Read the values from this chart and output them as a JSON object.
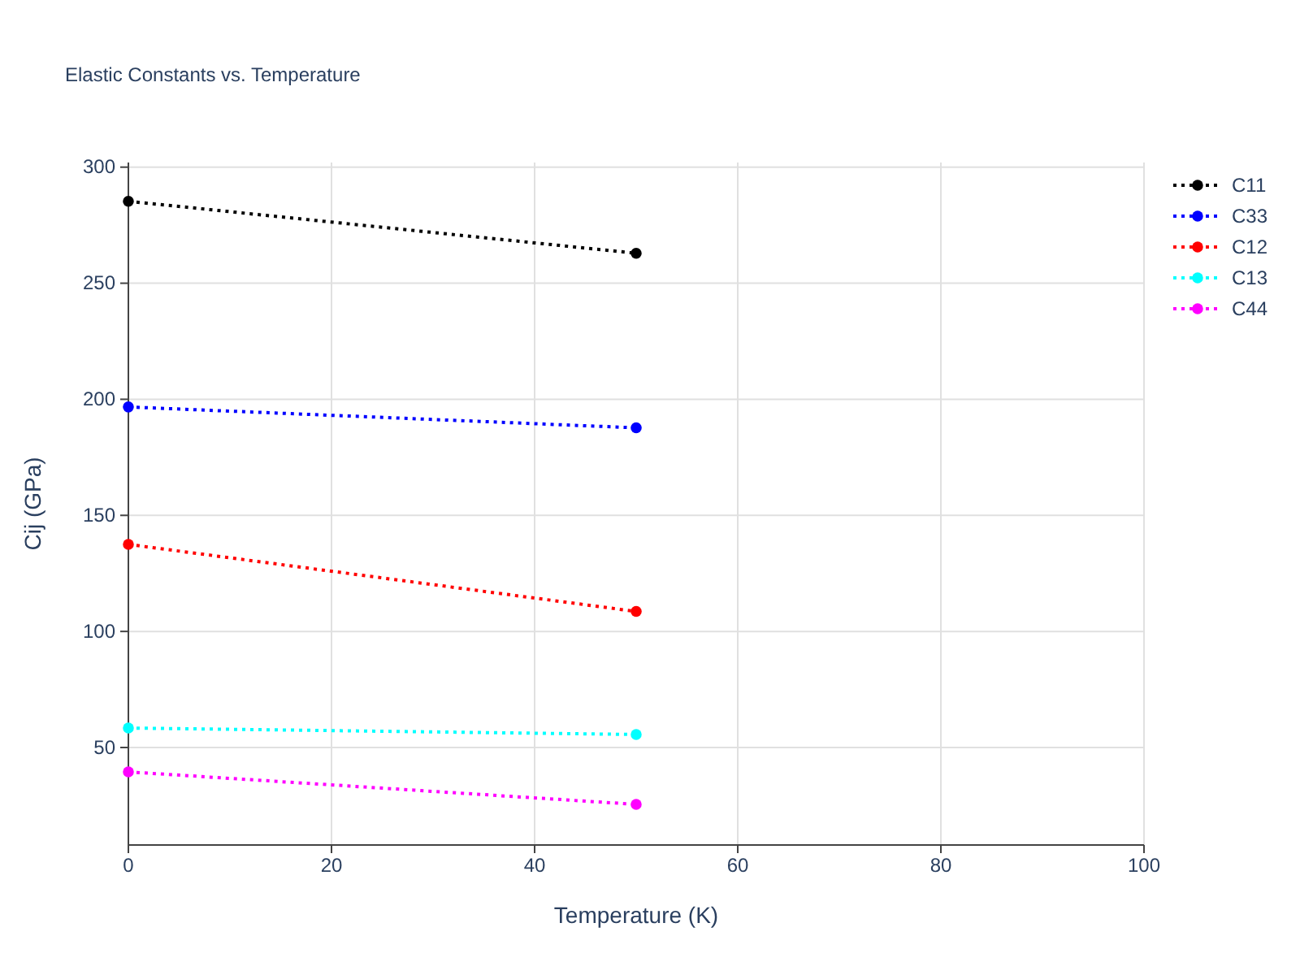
{
  "chart_data": {
    "type": "line",
    "title": "Elastic Constants vs. Temperature",
    "xlabel": "Temperature (K)",
    "ylabel": "Cij (GPa)",
    "x": [
      0,
      50
    ],
    "series": [
      {
        "name": "C11",
        "color": "#000000",
        "values": [
          285.3,
          262.9
        ]
      },
      {
        "name": "C33",
        "color": "#0000ff",
        "values": [
          196.7,
          187.7
        ]
      },
      {
        "name": "C12",
        "color": "#ff0000",
        "values": [
          137.5,
          108.6
        ]
      },
      {
        "name": "C13",
        "color": "#00ffff",
        "values": [
          58.4,
          55.6
        ]
      },
      {
        "name": "C44",
        "color": "#ff00ff",
        "values": [
          39.5,
          25.5
        ]
      }
    ],
    "xlim": [
      0,
      100
    ],
    "xticks": [
      0,
      20,
      40,
      60,
      80,
      100
    ],
    "ylim": [
      8,
      302
    ],
    "yticks": [
      50,
      100,
      150,
      200,
      250,
      300
    ],
    "grid": true,
    "legend": "top right",
    "marker": "circle",
    "line_style": "dotted"
  }
}
